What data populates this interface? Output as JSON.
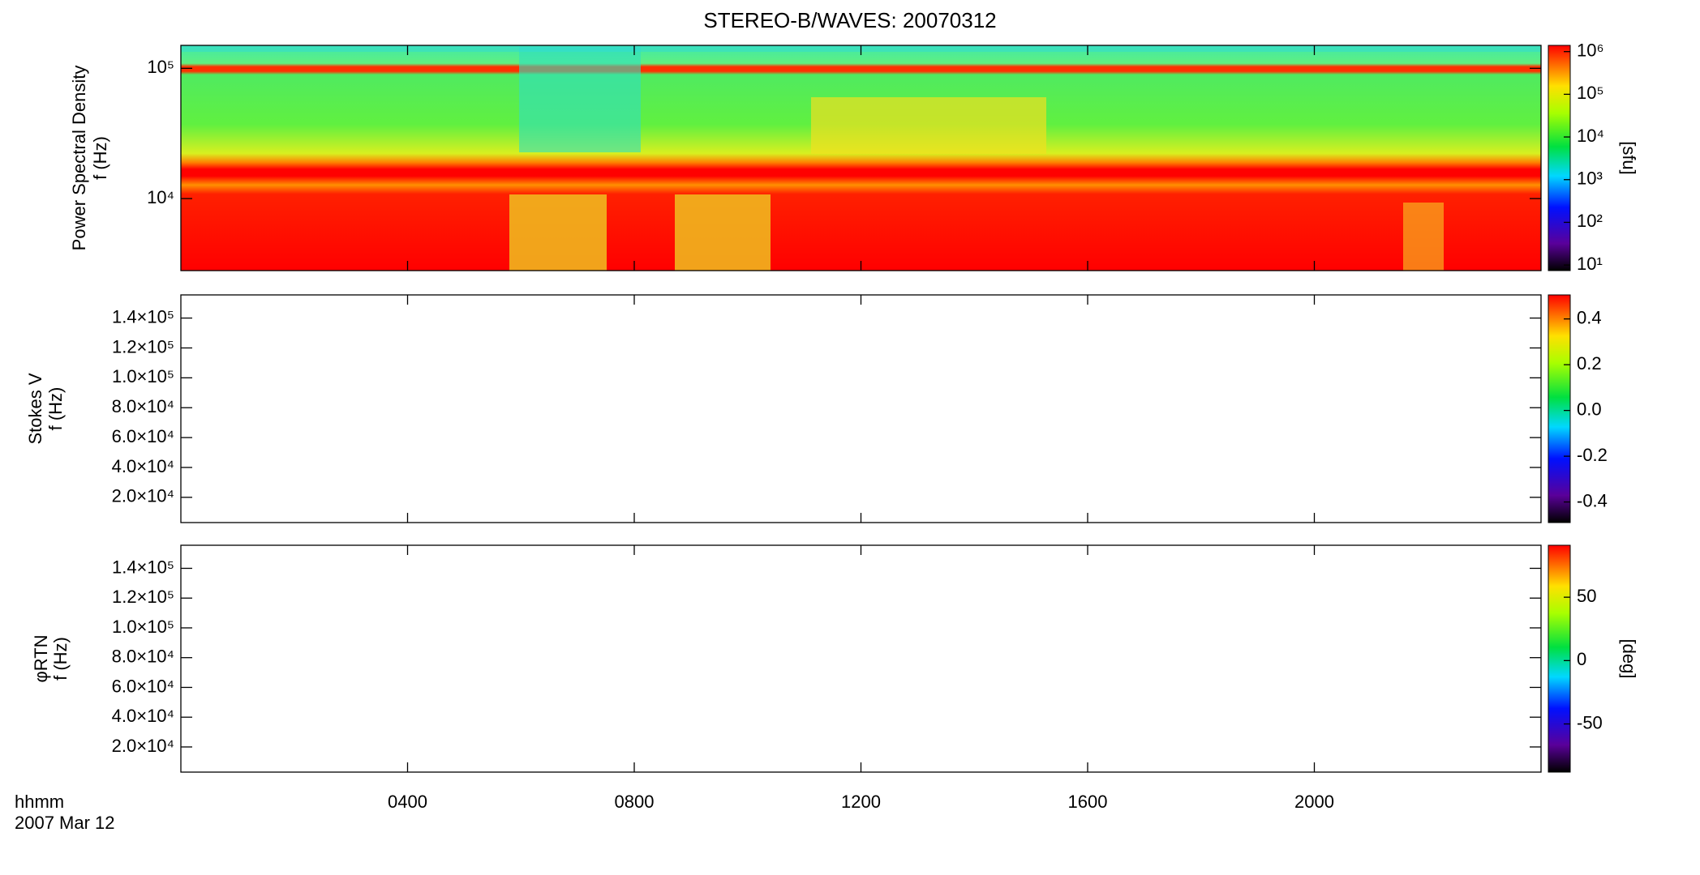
{
  "chart_data": [
    {
      "type": "spectrogram",
      "title": "STEREO-B/WAVES: 20070312",
      "ylabel": [
        "Power Spectral Density",
        "f (Hz)"
      ],
      "xlim": [
        0,
        24
      ],
      "xticks": [
        4,
        8,
        12,
        16,
        20
      ],
      "ylog": true,
      "ylim": [
        2800,
        150000
      ],
      "yticks": [
        {
          "value": 10000,
          "label": "10⁴"
        },
        {
          "value": 100000,
          "label": "10⁵"
        }
      ],
      "colorbar": {
        "log": true,
        "lim": [
          7.4,
          1400000
        ],
        "label": "[sfu]",
        "ticks": [
          {
            "value": 10,
            "label": "10¹"
          },
          {
            "value": 100,
            "label": "10²"
          },
          {
            "value": 1000,
            "label": "10³"
          },
          {
            "value": 10000,
            "label": "10⁴"
          },
          {
            "value": 100000,
            "label": "10⁵"
          },
          {
            "value": 1000000,
            "label": "10⁶"
          }
        ]
      }
    },
    {
      "type": "spectrogram",
      "ylabel": [
        "Stokes V",
        "f (Hz)"
      ],
      "xlim": [
        0,
        24
      ],
      "xticks": [
        4,
        8,
        12,
        16,
        20
      ],
      "ylog": false,
      "ylim": [
        3100,
        155500
      ],
      "yticks": [
        {
          "value": 20000,
          "label": "2.0×10⁴"
        },
        {
          "value": 40000,
          "label": "4.0×10⁴"
        },
        {
          "value": 60000,
          "label": "6.0×10⁴"
        },
        {
          "value": 80000,
          "label": "8.0×10⁴"
        },
        {
          "value": 100000,
          "label": "1.0×10⁵"
        },
        {
          "value": 120000,
          "label": "1.2×10⁵"
        },
        {
          "value": 140000,
          "label": "1.4×10⁵"
        }
      ],
      "colorbar": {
        "log": false,
        "lim": [
          -0.49,
          0.505
        ],
        "ticks": [
          -0.4,
          -0.2,
          {
            "value": 0,
            "label": "0.0"
          },
          0.2,
          0.4
        ]
      }
    },
    {
      "type": "spectrogram",
      "ylabel": [
        "φRTN",
        "f (Hz)"
      ],
      "xlabel": "hhmm",
      "date": "2007 Mar 12",
      "xlim": [
        0,
        24
      ],
      "xticks": [
        {
          "value": 4,
          "label": "0400"
        },
        {
          "value": 8,
          "label": "0800"
        },
        {
          "value": 12,
          "label": "1200"
        },
        {
          "value": 16,
          "label": "1600"
        },
        {
          "value": 20,
          "label": "2000"
        }
      ],
      "ylog": false,
      "ylim": [
        3100,
        155500
      ],
      "yticks": [
        {
          "value": 20000,
          "label": "2.0×10⁴"
        },
        {
          "value": 40000,
          "label": "4.0×10⁴"
        },
        {
          "value": 60000,
          "label": "6.0×10⁴"
        },
        {
          "value": 80000,
          "label": "8.0×10⁴"
        },
        {
          "value": 100000,
          "label": "1.0×10⁵"
        },
        {
          "value": 120000,
          "label": "1.2×10⁵"
        },
        {
          "value": 140000,
          "label": "1.4×10⁵"
        }
      ],
      "colorbar": {
        "log": false,
        "lim": [
          -88,
          91
        ],
        "label": "[deg]",
        "ticks": [
          -50,
          0,
          50
        ]
      }
    }
  ]
}
